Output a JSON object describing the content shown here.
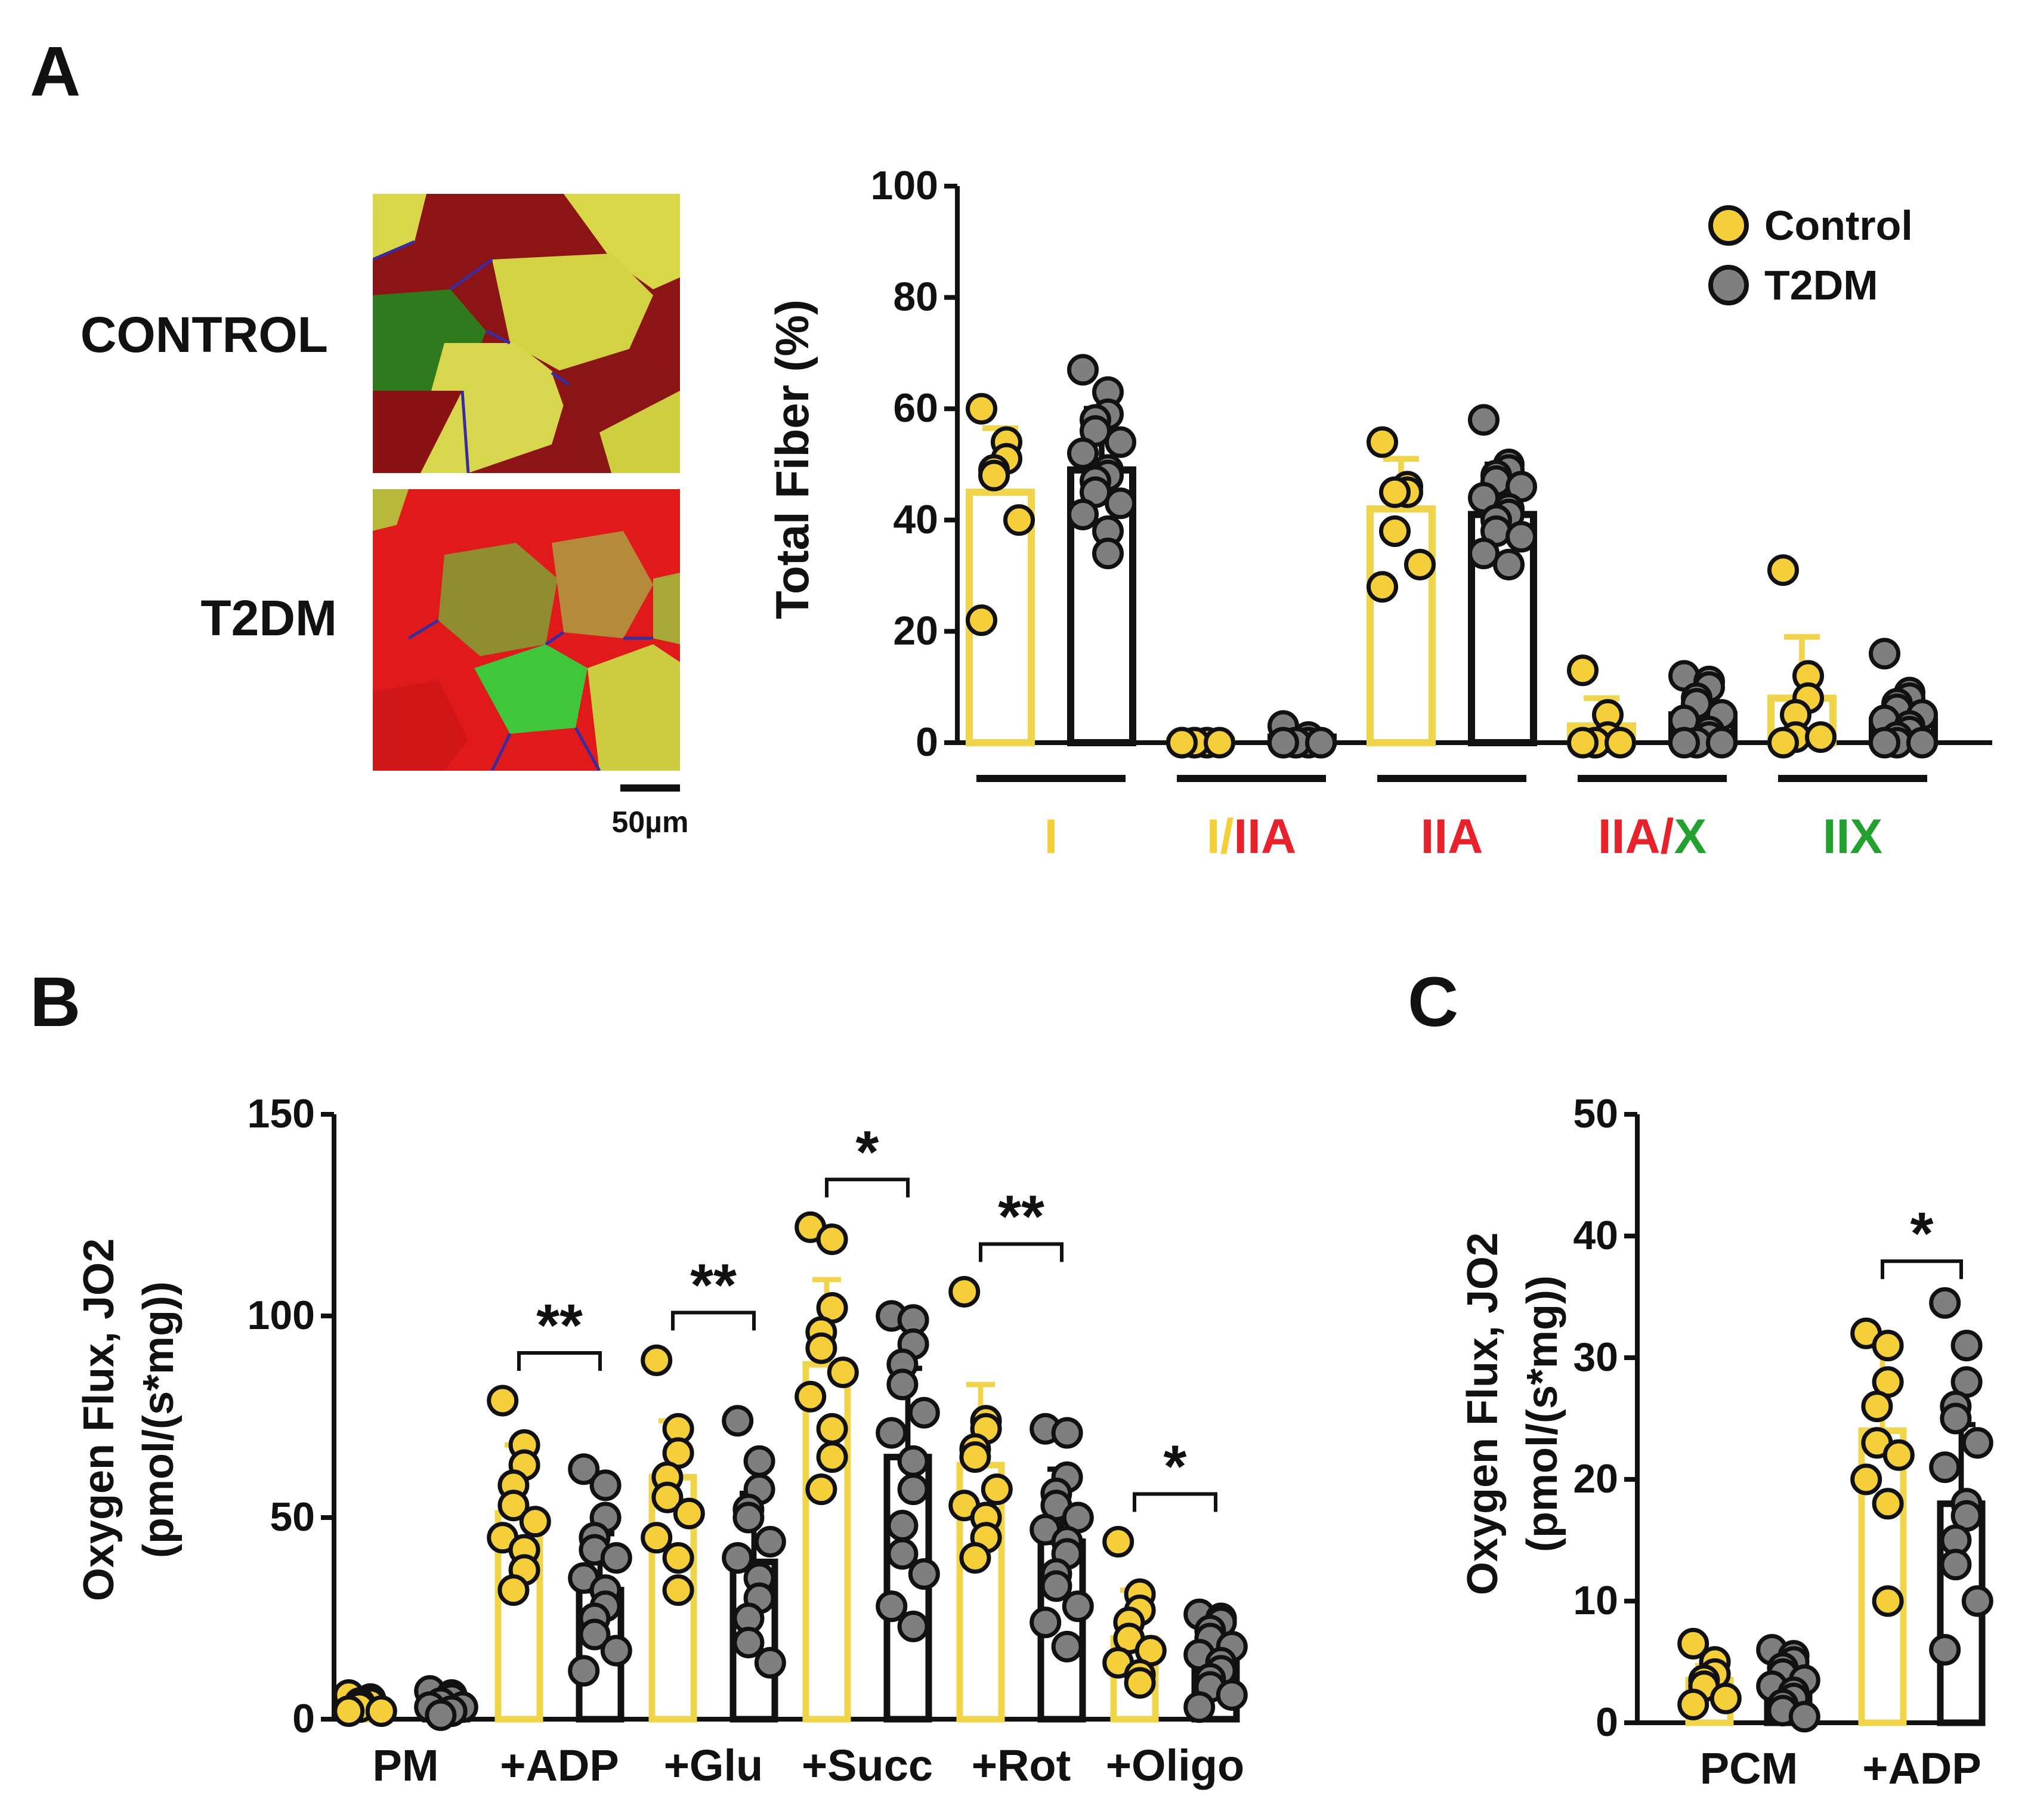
{
  "colors": {
    "control": "#F5CF3A",
    "control_bar": "#F0D44A",
    "t2dm": "#7F7F7F",
    "axis": "#111111",
    "red": "#E8222A",
    "green": "#22A12E"
  },
  "panel_a": {
    "letter": "A",
    "control_label": "CONTROL",
    "t2dm_label": "T2DM",
    "scale_bar": "50µm",
    "micrograph_icon": "muscle-fiber-stain-image"
  },
  "panel_b": {
    "letter": "B"
  },
  "panel_c": {
    "letter": "C"
  },
  "chart_data": [
    {
      "id": "fiber",
      "type": "bar",
      "title": "",
      "ylabel": "Total Fiber  (%)",
      "xlabel": "",
      "ylim": [
        0,
        100
      ],
      "yticks": [
        "0",
        "20",
        "40",
        "60",
        "80",
        "100"
      ],
      "legend": {
        "position": "top-right",
        "entries": [
          "Control",
          "T2DM"
        ]
      },
      "categories": [
        {
          "parts": [
            {
              "text": "I",
              "color": "#F5CF3A"
            }
          ]
        },
        {
          "parts": [
            {
              "text": "I",
              "color": "#F5CF3A"
            },
            {
              "text": "/",
              "color": "#F5CF3A"
            },
            {
              "text": "IIA",
              "color": "#E8222A"
            }
          ]
        },
        {
          "parts": [
            {
              "text": "IIA",
              "color": "#E8222A"
            }
          ]
        },
        {
          "parts": [
            {
              "text": "IIA",
              "color": "#E8222A"
            },
            {
              "text": "/",
              "color": "#E8222A"
            },
            {
              "text": "X",
              "color": "#22A12E"
            }
          ]
        },
        {
          "parts": [
            {
              "text": "IIX",
              "color": "#22A12E"
            }
          ]
        }
      ],
      "series": [
        {
          "name": "Control",
          "means": [
            45,
            0.5,
            42,
            3,
            8
          ],
          "errors": [
            11.5,
            0.5,
            9,
            5,
            11
          ],
          "points": [
            [
              60,
              54,
              51,
              49,
              48,
              40,
              22
            ],
            [
              0,
              0,
              0,
              0,
              0,
              0,
              0
            ],
            [
              54,
              46,
              45,
              45,
              38,
              32,
              28
            ],
            [
              13,
              5,
              1,
              0,
              0,
              0,
              0
            ],
            [
              31,
              12,
              8,
              5,
              1,
              1,
              0
            ]
          ]
        },
        {
          "name": "T2DM",
          "means": [
            49,
            1,
            41,
            5,
            4
          ],
          "errors": [
            11,
            1,
            9,
            5,
            4
          ],
          "points": [
            [
              67,
              63,
              59,
              58,
              56,
              54,
              52,
              49,
              48,
              47,
              45,
              43,
              41,
              38,
              34
            ],
            [
              3,
              1,
              1,
              0,
              0,
              0,
              0,
              0,
              0,
              0,
              0,
              0,
              0
            ],
            [
              58,
              50,
              49,
              48,
              47,
              46,
              44,
              42,
              41,
              40,
              38,
              37,
              34,
              32
            ],
            [
              12,
              11,
              10,
              8,
              7,
              5,
              4,
              2,
              1,
              0,
              0,
              0,
              0
            ],
            [
              16,
              9,
              8,
              7,
              6,
              5,
              4,
              3,
              2,
              1,
              0,
              0,
              0
            ]
          ]
        }
      ]
    },
    {
      "id": "flux_b",
      "type": "bar",
      "title": "",
      "ylabel": "Oxygen  Flux, JO2",
      "ylabel_line2": "(pmol/(s*mg))",
      "ylim": [
        0,
        150
      ],
      "yticks": [
        "0",
        "50",
        "100",
        "150"
      ],
      "categories": [
        "PM",
        "+ADP",
        "+Glu",
        "+Succ",
        "+Rot",
        "+Oligo"
      ],
      "significance": [
        "",
        "**",
        "**",
        "*",
        "**",
        "*"
      ],
      "series": [
        {
          "name": "Control",
          "means": [
            4,
            51,
            60,
            88,
            63,
            20
          ],
          "errors": [
            1.5,
            17,
            14,
            21,
            20,
            12
          ],
          "points": [
            [
              6,
              5,
              4,
              4,
              3,
              2,
              2
            ],
            [
              79,
              68,
              63,
              58,
              53,
              49,
              45,
              42,
              37,
              32
            ],
            [
              89,
              72,
              66,
              60,
              55,
              51,
              45,
              40,
              32
            ],
            [
              122,
              119,
              102,
              96,
              92,
              86,
              80,
              72,
              65,
              57
            ],
            [
              106,
              74,
              72,
              67,
              65,
              57,
              53,
              50,
              45,
              40
            ],
            [
              44,
              31,
              27,
              24,
              20,
              17,
              14,
              11,
              9
            ]
          ]
        },
        {
          "name": "T2DM",
          "means": [
            4,
            32,
            39,
            65,
            44,
            15
          ],
          "errors": [
            1.5,
            14,
            17,
            22,
            18,
            7
          ],
          "points": [
            [
              7,
              6,
              5,
              4,
              4,
              3,
              3,
              2,
              2,
              1
            ],
            [
              62,
              58,
              50,
              45,
              42,
              40,
              35,
              32,
              28,
              25,
              21,
              17,
              12
            ],
            [
              74,
              64,
              57,
              52,
              50,
              44,
              40,
              35,
              30,
              25,
              19,
              14
            ],
            [
              100,
              99,
              93,
              88,
              83,
              76,
              71,
              64,
              57,
              48,
              41,
              36,
              28,
              23
            ],
            [
              72,
              71,
              60,
              56,
              53,
              50,
              47,
              44,
              41,
              36,
              33,
              28,
              24,
              18
            ],
            [
              26,
              25,
              24,
              22,
              20,
              18,
              16,
              14,
              12,
              10,
              8,
              6,
              3
            ]
          ]
        }
      ]
    },
    {
      "id": "flux_c",
      "type": "bar",
      "title": "",
      "ylabel": "Oxygen  Flux, JO2",
      "ylabel_line2": "(pmol/(s*mg))",
      "ylim": [
        0,
        50
      ],
      "yticks": [
        "0",
        "10",
        "20",
        "30",
        "40",
        "50"
      ],
      "categories": [
        "PCM",
        "+ADP"
      ],
      "significance": [
        "",
        "*"
      ],
      "series": [
        {
          "name": "Control",
          "means": [
            3.5,
            24
          ],
          "errors": [
            1.2,
            7
          ],
          "points": [
            [
              6.5,
              5,
              4,
              3.5,
              3,
              2,
              1.5
            ],
            [
              32,
              31,
              28,
              26,
              23,
              22,
              20,
              18,
              10
            ]
          ]
        },
        {
          "name": "T2DM",
          "means": [
            3,
            18
          ],
          "errors": [
            1.2,
            6.5
          ],
          "points": [
            [
              6,
              5.5,
              5,
              4.5,
              4,
              3.5,
              3,
              2.5,
              2,
              1.5,
              1,
              0.5
            ],
            [
              34.5,
              31,
              28,
              26,
              25,
              23,
              21,
              18,
              17,
              15,
              13,
              10,
              6
            ]
          ]
        }
      ]
    }
  ]
}
